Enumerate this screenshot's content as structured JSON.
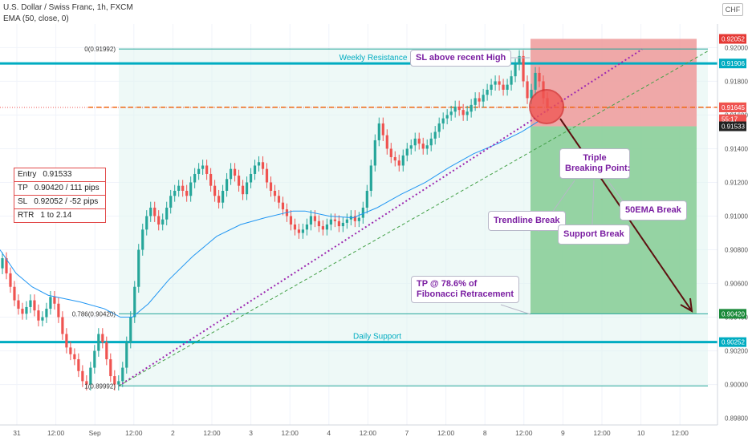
{
  "header": {
    "title": "U.S. Dollar / Swiss Franc, 1h, FXCM",
    "indicator": "EMA (50, close, 0)",
    "currency_button": "CHF"
  },
  "position_box": {
    "rows": [
      {
        "k": "Entry",
        "v": "0.91533"
      },
      {
        "k": "TP",
        "v": "0.90420 / 111 pips"
      },
      {
        "k": "SL",
        "v": "0.92052 / -52 pips"
      },
      {
        "k": "RTR",
        "v": "1 to 2.14"
      }
    ]
  },
  "callouts": {
    "sl": "SL above recent High",
    "triple_1": "Triple",
    "triple_2": "Breaking Point:",
    "trendline": "Trendline Break",
    "support": "Support Break",
    "ema": "50EMA Break",
    "tp_1": "TP @ 78.6% of",
    "tp_2": "Fibonacci Retracement"
  },
  "chart_data": {
    "type": "candlestick",
    "title": "U.S. Dollar / Swiss Franc, 1h, FXCM",
    "ylim": [
      0.8976,
      0.9214
    ],
    "y_ticks": [
      0.9,
      0.902,
      0.904,
      0.906,
      0.908,
      0.91,
      0.912,
      0.914,
      0.916,
      0.918,
      0.92
    ],
    "y_tick_labels": [
      "0.90000",
      "0.90200",
      "0.90400",
      "0.90600",
      "0.90800",
      "0.91000",
      "0.91200",
      "0.91400",
      "0.91600",
      "0.91800",
      "0.92000"
    ],
    "y_bottom_label": "0.89800",
    "x_tick_labels": [
      "31",
      "12:00",
      "Sep",
      "12:00",
      "2",
      "12:00",
      "3",
      "12:00",
      "4",
      "12:00",
      "7",
      "12:00",
      "8",
      "12:00",
      "9",
      "12:00",
      "10",
      "12:00"
    ],
    "price_tags": [
      {
        "value": 0.92052,
        "label": "0.92052",
        "color": "#e53935"
      },
      {
        "value": 0.91906,
        "label": "0.91906",
        "color": "#00acc1"
      },
      {
        "value": 0.91646,
        "label": "0.91646",
        "color": "#ef6c00"
      },
      {
        "value": 0.91645,
        "label": "0.91645",
        "color": "#ef5350"
      },
      {
        "value": 0.91575,
        "label": "55:17",
        "color": "#ef5350"
      },
      {
        "value": 0.91533,
        "label": "0.91533",
        "color": "#222222"
      },
      {
        "value": 0.9042,
        "label": "0.90420",
        "color": "#1b8a3a"
      },
      {
        "value": 0.90252,
        "label": "0.90252",
        "color": "#00acc1"
      }
    ],
    "fibonacci": [
      {
        "label": "0(0.91992)",
        "value": 0.91992
      },
      {
        "label": "0.786(0.90420)",
        "value": 0.9042
      },
      {
        "label": "1(0.89992)",
        "value": 0.89992
      }
    ],
    "levels": [
      {
        "name": "Weekly Resistance",
        "value": 0.91906
      },
      {
        "name": "Daily Support",
        "value": 0.90252
      }
    ],
    "entry": 0.91533,
    "take_profit": 0.9042,
    "stop_loss": 0.92052,
    "dashed_level": 0.91646,
    "closes": [
      0.9075,
      0.9066,
      0.9058,
      0.905,
      0.9045,
      0.9042,
      0.9046,
      0.905,
      0.9044,
      0.9038,
      0.904,
      0.9045,
      0.9052,
      0.9048,
      0.904,
      0.903,
      0.9022,
      0.9018,
      0.9015,
      0.9008,
      0.9002,
      0.9,
      0.901,
      0.902,
      0.903,
      0.9025,
      0.9015,
      0.9005,
      0.9,
      0.9002,
      0.901,
      0.9025,
      0.904,
      0.9058,
      0.908,
      0.9092,
      0.91,
      0.9105,
      0.91,
      0.9095,
      0.9098,
      0.9105,
      0.9112,
      0.9115,
      0.9118,
      0.9115,
      0.9112,
      0.912,
      0.9125,
      0.9128,
      0.913,
      0.9125,
      0.9118,
      0.9112,
      0.9108,
      0.9115,
      0.9122,
      0.9128,
      0.9124,
      0.9118,
      0.9113,
      0.912,
      0.9125,
      0.913,
      0.9132,
      0.9128,
      0.912,
      0.9115,
      0.9112,
      0.9108,
      0.9104,
      0.91,
      0.9095,
      0.9092,
      0.909,
      0.9092,
      0.9095,
      0.91,
      0.9097,
      0.9094,
      0.9092,
      0.9095,
      0.9098,
      0.9097,
      0.9094,
      0.9096,
      0.9098,
      0.91,
      0.9097,
      0.9099,
      0.9105,
      0.9115,
      0.913,
      0.9145,
      0.9155,
      0.9148,
      0.914,
      0.9135,
      0.9133,
      0.913,
      0.9136,
      0.914,
      0.9142,
      0.9146,
      0.9143,
      0.914,
      0.9142,
      0.9146,
      0.915,
      0.9155,
      0.9158,
      0.916,
      0.9162,
      0.9165,
      0.9163,
      0.916,
      0.9162,
      0.9166,
      0.917,
      0.9168,
      0.9172,
      0.9175,
      0.9178,
      0.918,
      0.9178,
      0.9175,
      0.9178,
      0.9183,
      0.919,
      0.9195,
      0.918,
      0.917,
      0.9175,
      0.9185,
      0.918,
      0.917,
      0.9165
    ],
    "ema50": [
      {
        "x": 0,
        "y": 0.908
      },
      {
        "x": 20,
        "y": 0.9066
      },
      {
        "x": 40,
        "y": 0.9058
      },
      {
        "x": 60,
        "y": 0.9053
      },
      {
        "x": 100,
        "y": 0.9049
      },
      {
        "x": 130,
        "y": 0.9045
      },
      {
        "x": 150,
        "y": 0.904
      },
      {
        "x": 165,
        "y": 0.904
      },
      {
        "x": 185,
        "y": 0.9048
      },
      {
        "x": 210,
        "y": 0.9062
      },
      {
        "x": 240,
        "y": 0.9076
      },
      {
        "x": 270,
        "y": 0.9088
      },
      {
        "x": 300,
        "y": 0.9095
      },
      {
        "x": 330,
        "y": 0.9099
      },
      {
        "x": 365,
        "y": 0.9103
      },
      {
        "x": 380,
        "y": 0.9103
      },
      {
        "x": 410,
        "y": 0.91
      },
      {
        "x": 440,
        "y": 0.9099
      },
      {
        "x": 470,
        "y": 0.9105
      },
      {
        "x": 500,
        "y": 0.9113
      },
      {
        "x": 530,
        "y": 0.912
      },
      {
        "x": 560,
        "y": 0.9129
      },
      {
        "x": 590,
        "y": 0.9137
      },
      {
        "x": 620,
        "y": 0.9143
      },
      {
        "x": 650,
        "y": 0.915
      },
      {
        "x": 670,
        "y": 0.9156
      }
    ]
  }
}
